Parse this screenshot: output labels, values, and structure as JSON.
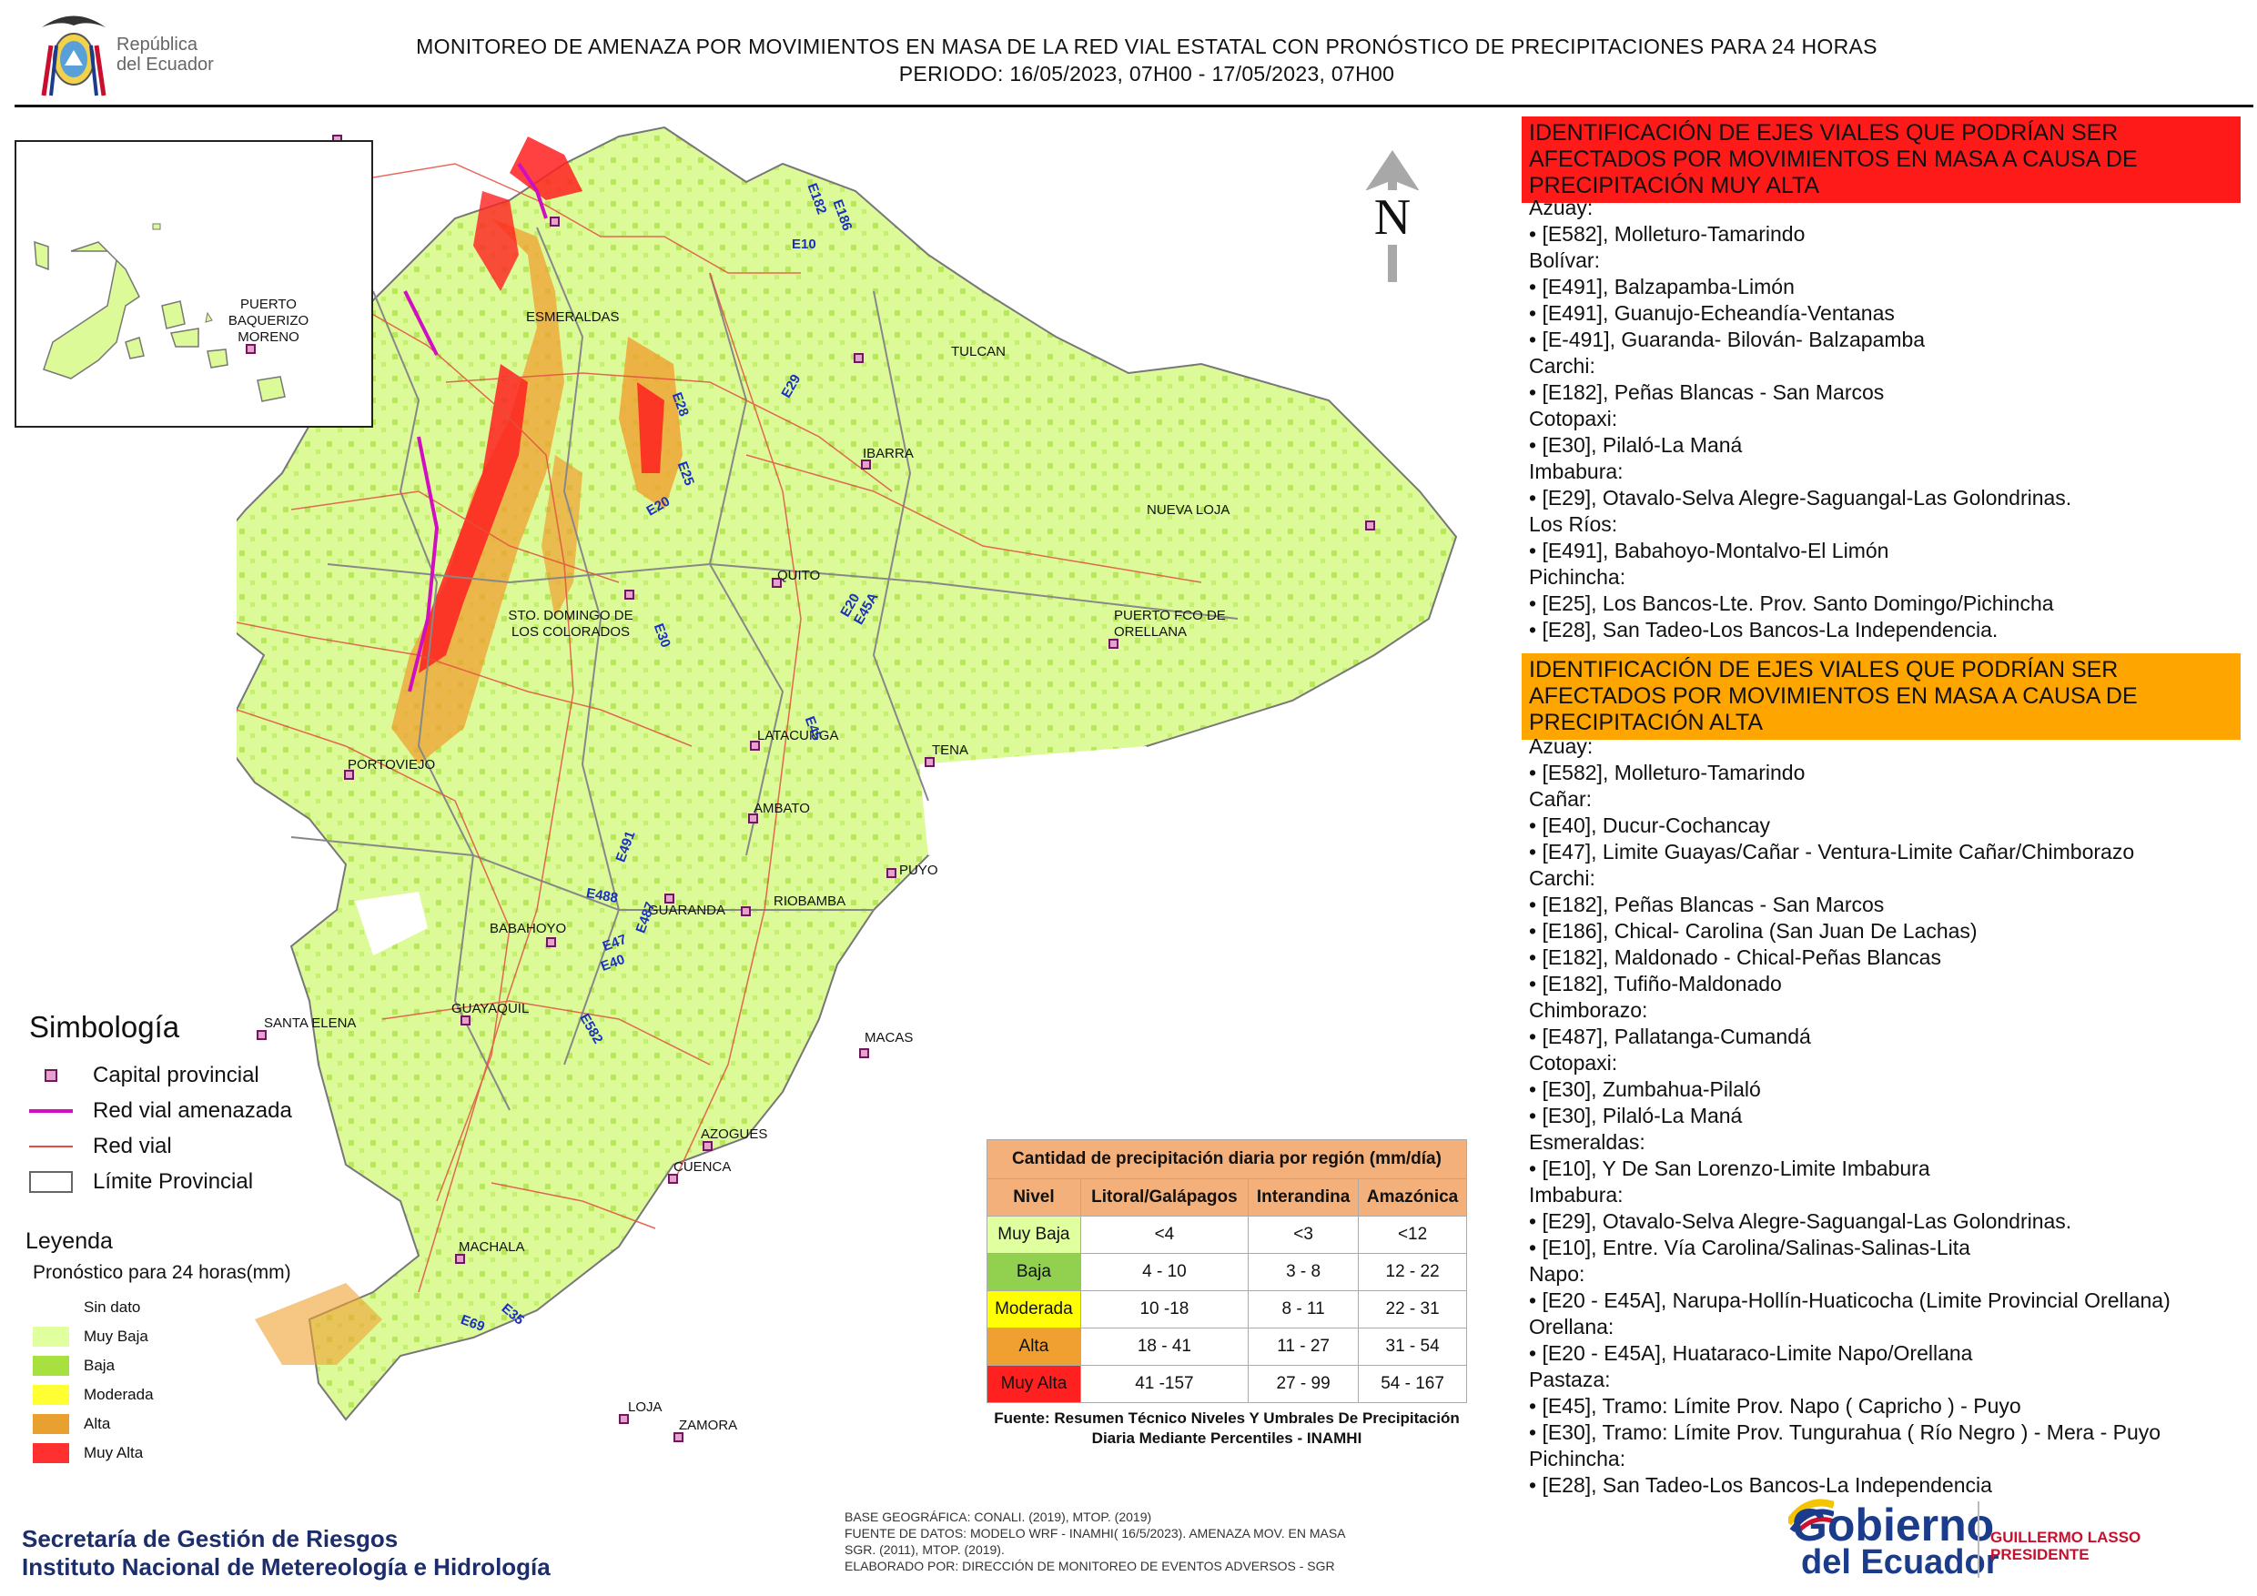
{
  "header": {
    "title_line1": "MONITOREO DE AMENAZA POR MOVIMIENTOS EN MASA DE LA RED VIAL  ESTATAL  CON PRONÓSTICO  DE  PRECIPITACIONES PARA 24 HORAS",
    "title_line2": "PERIODO: 16/05/2023, 07H00 - 17/05/2023, 07H00",
    "logo_text_1": "República",
    "logo_text_2": "del Ecuador"
  },
  "map": {
    "north_label": "N",
    "inset_city": "PUERTO BAQUERIZO MORENO",
    "cities": [
      "ESMERALDAS",
      "TULCAN",
      "IBARRA",
      "NUEVA LOJA",
      "QUITO",
      "STO. DOMINGO DE LOS COLORADOS",
      "PUERTO FCO DE ORELLANA",
      "LATACUNGA",
      "TENA",
      "PORTOVIEJO",
      "AMBATO",
      "PUYO",
      "GUARANDA",
      "RIOBAMBA",
      "BABAHOYO",
      "SANTA ELENA",
      "GUAYAQUIL",
      "MACAS",
      "AZOGUES",
      "CUENCA",
      "MACHALA",
      "LOJA",
      "ZAMORA"
    ],
    "road_codes": [
      "E10",
      "E182",
      "E186",
      "E28",
      "E29",
      "E25",
      "E20",
      "E30",
      "E20 E45A",
      "E45",
      "E491",
      "E488",
      "E487",
      "E47",
      "E40",
      "E582",
      "E69",
      "E35"
    ]
  },
  "panel": {
    "very_high_header": "IDENTIFICACIÓN DE EJES VIALES QUE PODRÍAN SER AFECTADOS POR MOVIMIENTOS EN MASA A CAUSA DE PRECIPITACIÓN MUY ALTA",
    "very_high_items": [
      "Azuay:",
      "• [E582], Molleturo-Tamarindo",
      "Bolívar:",
      "• [E491], Balzapamba-Limón",
      "• [E491], Guanujo-Echeandía-Ventanas",
      "• [E-491], Guaranda- Bilován- Balzapamba",
      "Carchi:",
      "• [E182], Peñas Blancas - San Marcos",
      "Cotopaxi:",
      "• [E30], Pilaló-La Maná",
      "Imbabura:",
      "• [E29], Otavalo-Selva Alegre-Saguangal-Las Golondrinas.",
      "Los Ríos:",
      "• [E491], Babahoyo-Montalvo-El Limón",
      "Pichincha:",
      "• [E25], Los Bancos-Lte. Prov. Santo Domingo/Pichincha",
      "• [E28], San Tadeo-Los Bancos-La Independencia."
    ],
    "high_header": "IDENTIFICACIÓN DE EJES VIALES QUE PODRÍAN SER AFECTADOS POR MOVIMIENTOS EN MASA A CAUSA DE PRECIPITACIÓN  ALTA",
    "high_items": [
      "Azuay:",
      "• [E582], Molleturo-Tamarindo",
      "Cañar:",
      "• [E40], Ducur-Cochancay",
      "• [E47], Limite Guayas/Cañar - Ventura-Limite Cañar/Chimborazo",
      "Carchi:",
      "• [E182], Peñas Blancas - San Marcos",
      "• [E186], Chical- Carolina (San Juan De Lachas)",
      "• [E182], Maldonado - Chical-Peñas Blancas",
      "• [E182], Tufiño-Maldonado",
      "Chimborazo:",
      "• [E487], Pallatanga-Cumandá",
      "Cotopaxi:",
      "• [E30], Zumbahua-Pilaló",
      "• [E30], Pilaló-La Maná",
      "Esmeraldas:",
      "• [E10], Y De San Lorenzo-Limite Imbabura",
      "Imbabura:",
      "• [E29], Otavalo-Selva Alegre-Saguangal-Las Golondrinas.",
      "• [E10], Entre. Vía Carolina/Salinas-Salinas-Lita",
      "Napo:",
      "• [E20 - E45A], Narupa-Hollín-Huaticocha (Limite Provincial Orellana)",
      "Orellana:",
      "• [E20 - E45A], Huataraco-Limite Napo/Orellana",
      "Pastaza:",
      "• [E45], Tramo: Límite Prov. Napo ( Capricho ) - Puyo",
      "• [E30], Tramo: Límite Prov. Tungurahua ( Río Negro ) - Mera - Puyo",
      "Pichincha:",
      "• [E28], San Tadeo-Los Bancos-La Independencia"
    ],
    "colors": {
      "very_high": "#ff1a1a",
      "high": "#ffa500"
    }
  },
  "simbologia": {
    "title": "Simbología",
    "items": [
      "Capital provincial",
      "Red vial amenazada",
      "Red vial",
      "Límite Provincial"
    ]
  },
  "leyenda": {
    "title": "Leyenda",
    "subtitle": "Pronóstico para 24 horas(mm)",
    "items": [
      {
        "label": "Sin dato",
        "color": "#ffffff"
      },
      {
        "label": "Muy Baja",
        "color": "#e0ff9f"
      },
      {
        "label": "Baja",
        "color": "#a8e040"
      },
      {
        "label": "Moderada",
        "color": "#ffff33"
      },
      {
        "label": "Alta",
        "color": "#e8a030"
      },
      {
        "label": "Muy Alta",
        "color": "#ff3030"
      }
    ]
  },
  "precip_table": {
    "caption": "Cantidad de precipitación diaria por región (mm/día)",
    "headers": [
      "Nivel",
      "Litoral/Galápagos",
      "Interandina",
      "Amazónica"
    ],
    "rows": [
      {
        "nivel": "Muy Baja",
        "litoral": "<4",
        "interandina": "<3",
        "amazonica": "<12",
        "color": "#e0ff9f"
      },
      {
        "nivel": "Baja",
        "litoral": "4 - 10",
        "interandina": "3 - 8",
        "amazonica": "12 - 22",
        "color": "#92d050"
      },
      {
        "nivel": "Moderada",
        "litoral": "10 -18",
        "interandina": "8 - 11",
        "amazonica": "22 - 31",
        "color": "#ffff00"
      },
      {
        "nivel": "Alta",
        "litoral": "18 - 41",
        "interandina": "11 - 27",
        "amazonica": "31 - 54",
        "color": "#f0a030"
      },
      {
        "nivel": "Muy Alta",
        "litoral": "41 -157",
        "interandina": "27 - 99",
        "amazonica": "54 - 167",
        "color": "#ff2020"
      }
    ],
    "source": "Fuente: Resumen Técnico Niveles Y Umbrales De Precipitación Diaria Mediante Percentiles - INAMHI"
  },
  "footer": {
    "org_line1": "Secretaría de Gestión de Riesgos",
    "org_line2": "Instituto Nacional de Metereología e Hidrología",
    "sources": [
      "BASE GEOGRÁFICA: CONALI. (2019), MTOP. (2019)",
      "FUENTE DE DATOS: MODELO WRF - INAMHI( 16/5/2023). AMENAZA MOV. EN MASA",
      "SGR. (2011), MTOP. (2019).",
      "ELABORADO POR: DIRECCIÓN DE MONITOREO DE EVENTOS ADVERSOS - SGR"
    ],
    "gob_line1": "Gobierno",
    "gob_line2": "del Ecuador",
    "president_name": "GUILLERMO LASSO",
    "president_title": "PRESIDENTE"
  }
}
